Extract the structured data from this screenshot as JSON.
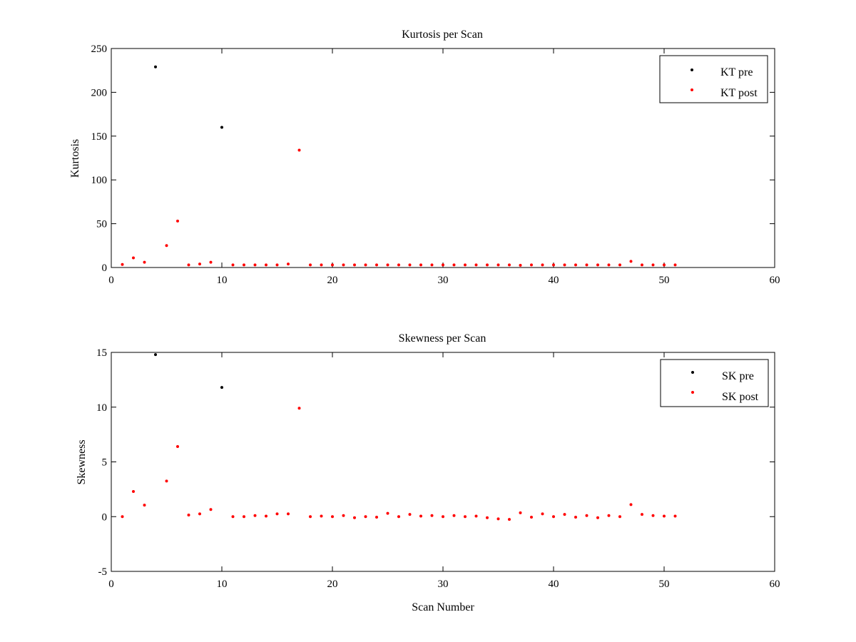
{
  "chart_data": [
    {
      "type": "scatter",
      "title": "Kurtosis per Scan",
      "xlabel": "",
      "ylabel": "Kurtosis",
      "xlim": [
        0,
        60
      ],
      "ylim": [
        0,
        250
      ],
      "xticks": [
        0,
        10,
        20,
        30,
        40,
        50,
        60
      ],
      "yticks": [
        0,
        50,
        100,
        150,
        200,
        250
      ],
      "grid": false,
      "legend_position": "top-right",
      "series": [
        {
          "name": "KT pre",
          "color": "#000000",
          "marker": "dot",
          "x": [
            4,
            10
          ],
          "y": [
            229,
            160
          ]
        },
        {
          "name": "KT post",
          "color": "#ff0000",
          "marker": "dot",
          "x": [
            1,
            2,
            3,
            5,
            6,
            7,
            8,
            9,
            11,
            12,
            13,
            14,
            15,
            16,
            17,
            18,
            19,
            20,
            21,
            22,
            23,
            24,
            25,
            26,
            27,
            28,
            29,
            30,
            31,
            32,
            33,
            34,
            35,
            36,
            37,
            38,
            39,
            40,
            41,
            42,
            43,
            44,
            45,
            46,
            47,
            48,
            49,
            50,
            51
          ],
          "y": [
            3.5,
            11,
            6,
            25,
            53,
            3,
            4,
            6,
            3,
            3,
            3,
            3,
            3,
            4,
            134,
            3,
            3,
            3,
            3,
            3,
            3,
            3,
            3,
            3,
            3,
            3,
            3,
            3,
            3,
            3,
            3,
            3,
            3,
            3,
            2.5,
            3,
            3,
            3,
            3,
            3,
            3,
            3,
            3,
            3,
            7,
            3,
            3,
            3,
            3
          ]
        }
      ]
    },
    {
      "type": "scatter",
      "title": "Skewness per Scan",
      "xlabel": "Scan Number",
      "ylabel": "Skewness",
      "xlim": [
        0,
        60
      ],
      "ylim": [
        -5,
        15
      ],
      "xticks": [
        0,
        10,
        20,
        30,
        40,
        50,
        60
      ],
      "yticks": [
        -5,
        0,
        5,
        10,
        15
      ],
      "grid": false,
      "legend_position": "top-right",
      "series": [
        {
          "name": "SK pre",
          "color": "#000000",
          "marker": "dot",
          "x": [
            4,
            10
          ],
          "y": [
            14.8,
            11.8
          ]
        },
        {
          "name": "SK post",
          "color": "#ff0000",
          "marker": "dot",
          "x": [
            1,
            2,
            3,
            5,
            6,
            7,
            8,
            9,
            11,
            12,
            13,
            14,
            15,
            16,
            17,
            18,
            19,
            20,
            21,
            22,
            23,
            24,
            25,
            26,
            27,
            28,
            29,
            30,
            31,
            32,
            33,
            34,
            35,
            36,
            37,
            38,
            39,
            40,
            41,
            42,
            43,
            44,
            45,
            46,
            47,
            48,
            49,
            50,
            51
          ],
          "y": [
            0,
            2.3,
            1.05,
            3.25,
            6.4,
            0.15,
            0.25,
            0.65,
            0,
            0,
            0.1,
            0.05,
            0.25,
            0.25,
            9.9,
            0,
            0.05,
            0,
            0.1,
            -0.1,
            0,
            -0.05,
            0.3,
            0,
            0.2,
            0.05,
            0.1,
            0,
            0.1,
            0,
            0.05,
            -0.1,
            -0.2,
            -0.25,
            0.35,
            -0.05,
            0.25,
            0,
            0.2,
            -0.05,
            0.1,
            -0.1,
            0.1,
            0,
            1.1,
            0.2,
            0.1,
            0.05,
            0.05
          ]
        }
      ]
    }
  ]
}
